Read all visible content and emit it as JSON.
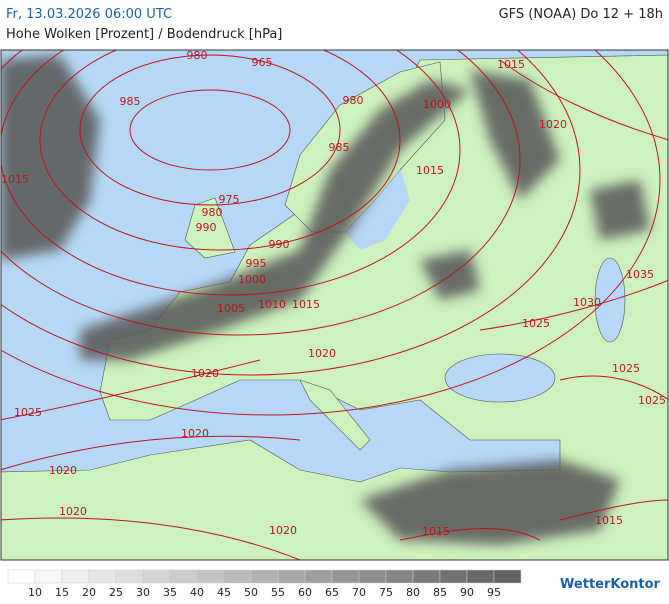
{
  "header": {
    "datetime": "Fr, 13.03.2026 06:00 UTC",
    "model": "GFS (NOAA) Do 12 + 18h",
    "title": "Hohe Wolken [Prozent] / Bodendruck [hPa]"
  },
  "map": {
    "isobar_labels": [
      980,
      965,
      985,
      980,
      1000,
      1015,
      1020,
      985,
      1015,
      1015,
      975,
      980,
      990,
      990,
      995,
      1000,
      1005,
      1010,
      1015,
      1035,
      1030,
      1025,
      1020,
      1025,
      1020,
      1025,
      1025,
      1020,
      1020,
      1020,
      1015,
      1020,
      1015
    ],
    "isobar_color": "#c0141e"
  },
  "legend": {
    "labels": [
      10,
      15,
      20,
      25,
      30,
      35,
      40,
      45,
      50,
      55,
      60,
      65,
      70,
      75,
      80,
      85,
      90,
      95
    ],
    "colors": [
      "#ffffff",
      "#f7f7f7",
      "#efefef",
      "#e6e6e6",
      "#dedede",
      "#d5d5d5",
      "#cccccc",
      "#c3c3c3",
      "#bababa",
      "#b1b1b1",
      "#a8a8a8",
      "#9f9f9f",
      "#969696",
      "#8d8d8d",
      "#848484",
      "#7b7b7b",
      "#727272",
      "#6a6a6a",
      "#626262"
    ]
  },
  "logo": "WetterKontor"
}
